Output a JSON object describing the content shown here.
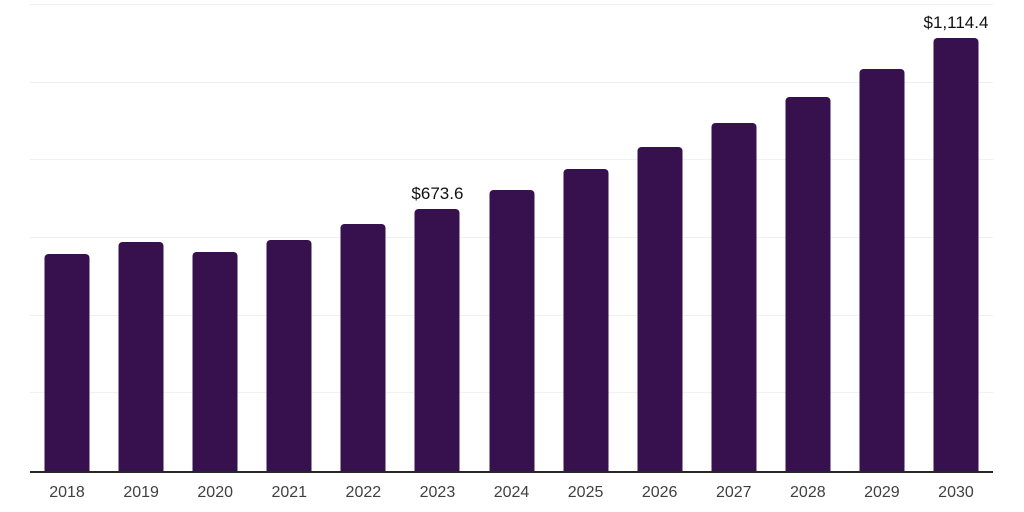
{
  "chart_data": {
    "type": "bar",
    "title": "",
    "xlabel": "",
    "ylabel": "",
    "categories": [
      "2018",
      "2019",
      "2020",
      "2021",
      "2022",
      "2023",
      "2024",
      "2025",
      "2026",
      "2027",
      "2028",
      "2029",
      "2030"
    ],
    "values": [
      560,
      590,
      565,
      596,
      637,
      673.6,
      724,
      777,
      834,
      895,
      963,
      1036,
      1114.4
    ],
    "data_labels": {
      "2023": "$673.6",
      "2030": "$1,114.4"
    },
    "ylim": [
      0,
      1200
    ],
    "gridline_values": [
      200,
      400,
      600,
      800,
      1000,
      1200
    ],
    "grid": "horizontal",
    "legend_position": "none",
    "y_axis_tick_labels_visible": false,
    "colors": {
      "bar": "#36114E",
      "axis_line": "#262626",
      "gridline": "#f0f0f0",
      "tick_label": "#3f3f3f",
      "value_label": "#111111",
      "background": "#ffffff"
    }
  }
}
